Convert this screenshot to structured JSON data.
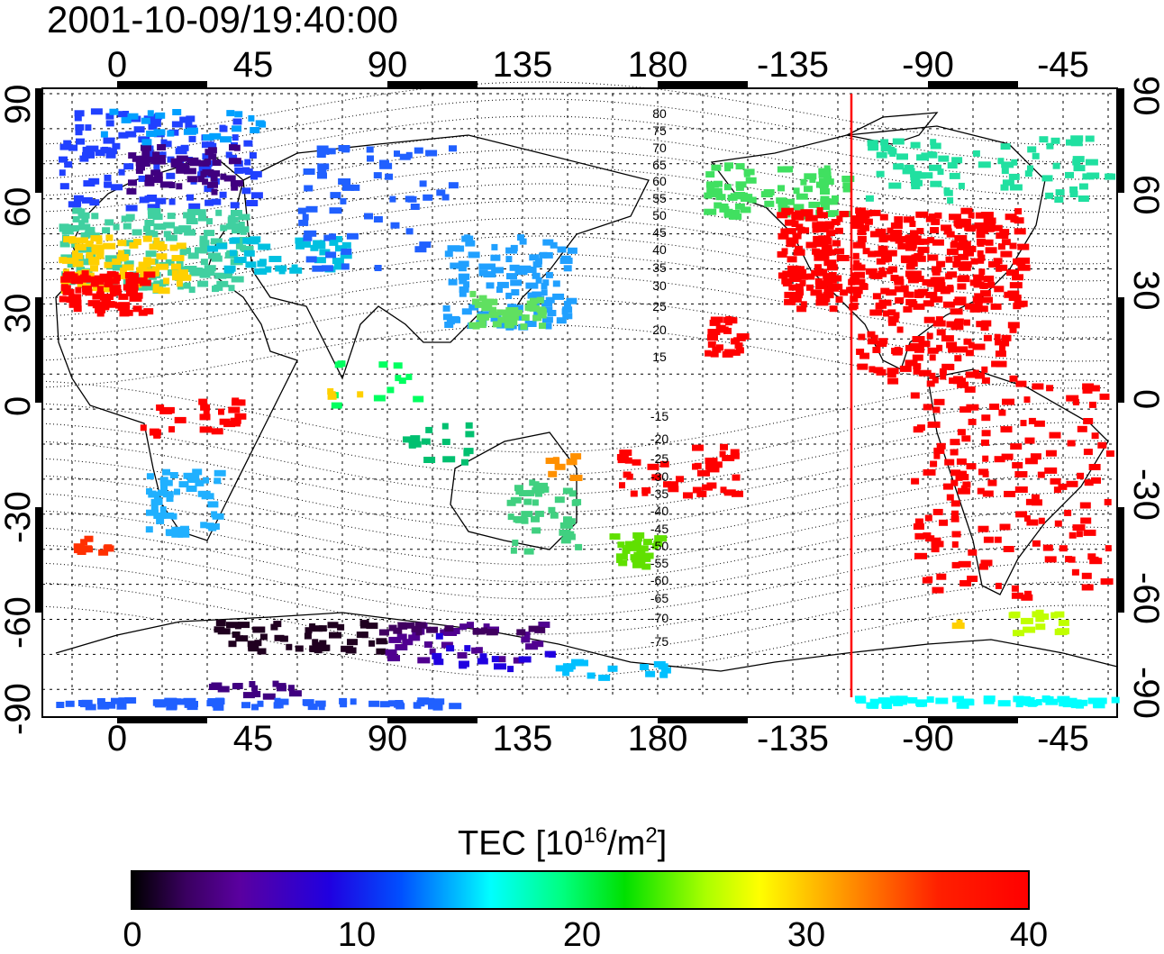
{
  "title": "2001-10-09/19:40:00",
  "axes": {
    "lon_ticks": [
      "0",
      "45",
      "90",
      "135",
      "180",
      "-135",
      "-90",
      "-45"
    ],
    "lat_ticks": [
      "90",
      "60",
      "30",
      "0",
      "-30",
      "-60",
      "-90"
    ]
  },
  "mlat_labels": [
    "80",
    "75",
    "70",
    "65",
    "60",
    "55",
    "50",
    "45",
    "40",
    "35",
    "30",
    "25",
    "20",
    "15",
    "-15",
    "-20",
    "-25",
    "-30",
    "-35",
    "-40",
    "-45",
    "-50",
    "-55",
    "-60",
    "-65",
    "-70",
    "-75"
  ],
  "colorbar": {
    "title_prefix": "TEC  [10",
    "title_exp1": "16",
    "title_mid": "/m",
    "title_exp2": "2",
    "title_suffix": "]",
    "tick_labels": [
      "0",
      "10",
      "20",
      "30",
      "40"
    ],
    "range": [
      0,
      40
    ]
  },
  "terminator": {
    "lon": -115,
    "color": "#ff0000"
  },
  "colors": {
    "low": "#000000",
    "mid": "#00ffff",
    "high": "#ff0000"
  }
}
